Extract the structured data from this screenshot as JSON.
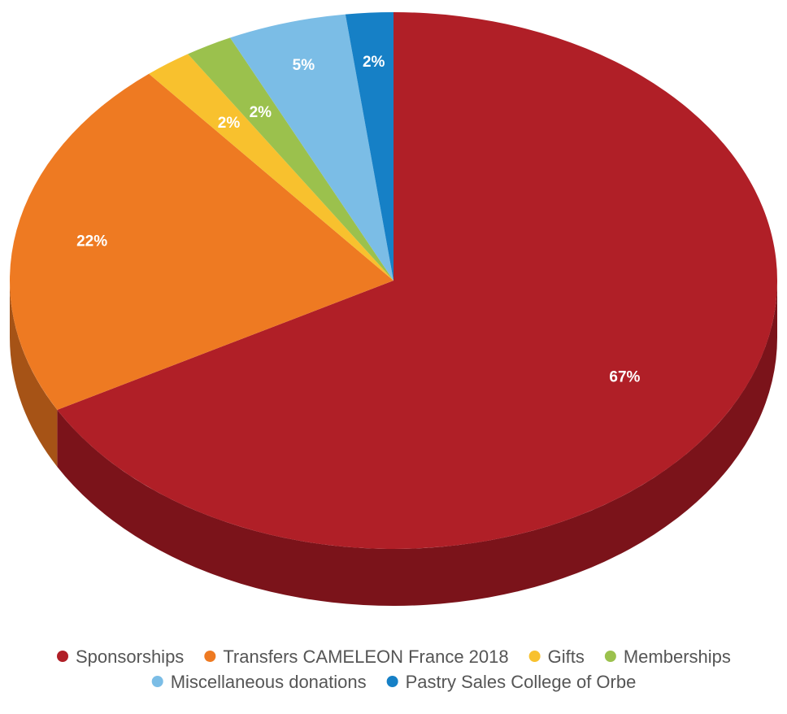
{
  "chart_data": {
    "type": "pie",
    "title": "",
    "legend_position": "bottom",
    "slices": [
      {
        "name": "Sponsorships",
        "value": 67,
        "label": "67%",
        "color": "#b01f27",
        "side_color": "#7b131a"
      },
      {
        "name": "Transfers CAMELEON France 2018",
        "value": 22,
        "label": "22%",
        "color": "#ee7a22",
        "side_color": "#a65316"
      },
      {
        "name": "Gifts",
        "value": 2,
        "label": "2%",
        "color": "#f8c12e",
        "side_color": "#b08820"
      },
      {
        "name": "Memberships",
        "value": 2,
        "label": "2%",
        "color": "#9bc14d",
        "side_color": "#6c8935"
      },
      {
        "name": "Miscellaneous donations",
        "value": 5,
        "label": "5%",
        "color": "#7bbde6",
        "side_color": "#5585a3"
      },
      {
        "name": "Pastry Sales College of Orbe",
        "value": 2,
        "label": "2%",
        "color": "#1680c6",
        "side_color": "#0f5a8b"
      }
    ]
  }
}
